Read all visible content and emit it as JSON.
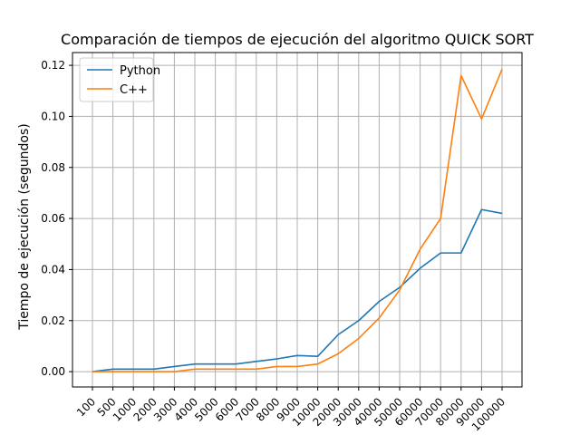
{
  "chart_data": {
    "type": "line",
    "title": "Comparación de tiempos de ejecución del algoritmo QUICK SORT",
    "xlabel": "",
    "ylabel": "Tiempo de ejecución (segundos)",
    "categories": [
      "100",
      "500",
      "1000",
      "2000",
      "3000",
      "4000",
      "5000",
      "6000",
      "7000",
      "8000",
      "9000",
      "10000",
      "20000",
      "30000",
      "40000",
      "50000",
      "60000",
      "70000",
      "80000",
      "90000",
      "100000"
    ],
    "ylim": [
      -0.006,
      0.125
    ],
    "yticks": [
      0.0,
      0.02,
      0.04,
      0.06,
      0.08,
      0.1,
      0.12
    ],
    "ytick_labels": [
      "0.00",
      "0.02",
      "0.04",
      "0.06",
      "0.08",
      "0.10",
      "0.12"
    ],
    "grid": true,
    "legend_position": "upper-left",
    "series": [
      {
        "name": "Python",
        "color": "#1f77b4",
        "values": [
          0.0,
          0.001,
          0.001,
          0.001,
          0.002,
          0.003,
          0.003,
          0.003,
          0.004,
          0.005,
          0.0063,
          0.006,
          0.0145,
          0.02,
          0.0275,
          0.033,
          0.0405,
          0.0465,
          0.0465,
          0.0635,
          0.062
        ]
      },
      {
        "name": "C++",
        "color": "#ff7f0e",
        "values": [
          0.0,
          0.0,
          0.0,
          0.0,
          0.0,
          0.001,
          0.001,
          0.001,
          0.001,
          0.002,
          0.002,
          0.003,
          0.007,
          0.013,
          0.021,
          0.032,
          0.048,
          0.06,
          0.116,
          0.099,
          0.1185
        ]
      }
    ]
  }
}
